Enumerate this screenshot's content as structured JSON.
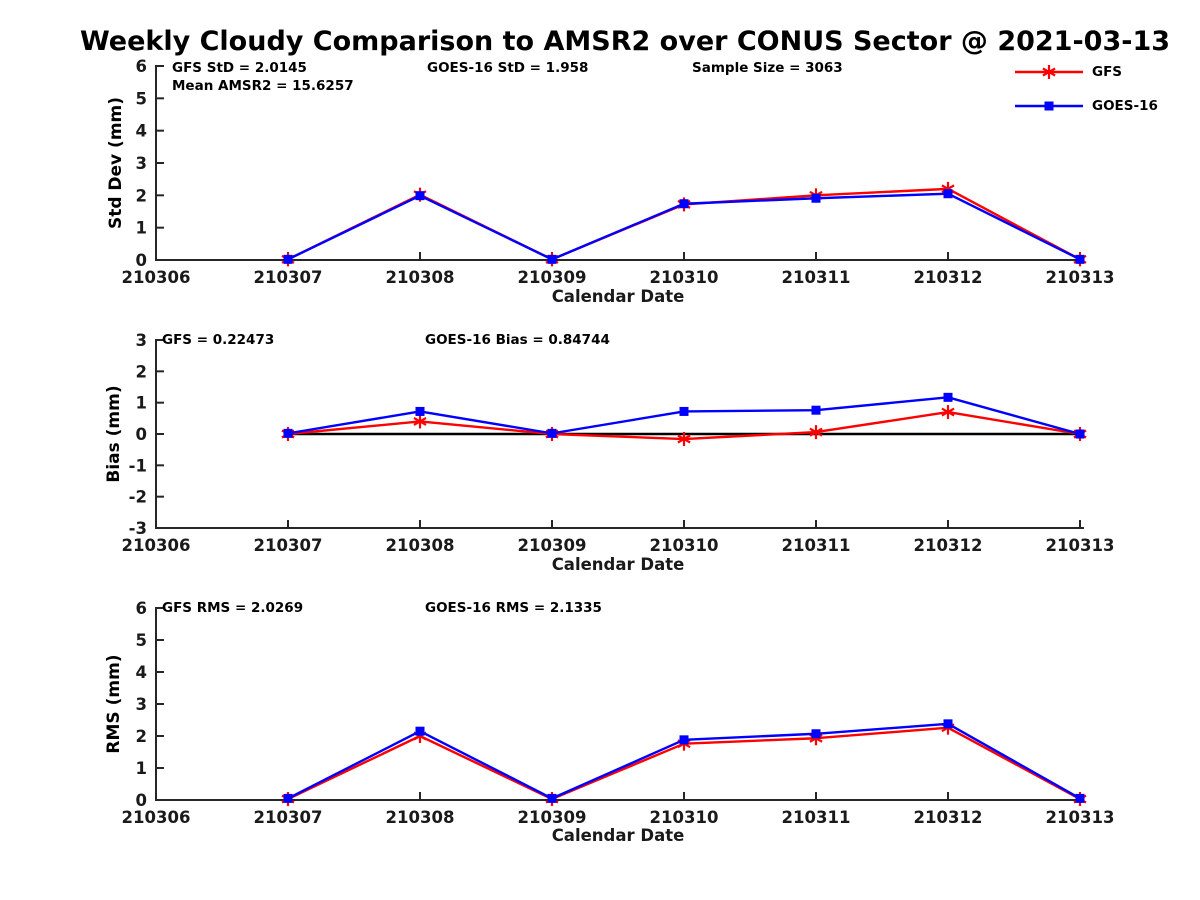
{
  "title": "Weekly Cloudy Comparison to AMSR2 over CONUS Sector @ 2021-03-13",
  "colors": {
    "gfs": "#ff0000",
    "goes16": "#0000ff",
    "axis": "#262626",
    "tick_text": "#1a1a1a",
    "zero_line": "#000000"
  },
  "legend": {
    "position": "top-right",
    "items": [
      {
        "label": "GFS",
        "color": "#ff0000",
        "marker": "asterisk"
      },
      {
        "label": "GOES-16",
        "color": "#0000ff",
        "marker": "square"
      }
    ]
  },
  "chart_data": [
    {
      "type": "line",
      "name": "stddev",
      "ylabel": "Std Dev (mm)",
      "xlabel": "Calendar Date",
      "ylim": [
        0,
        6
      ],
      "yticks": [
        0,
        1,
        2,
        3,
        4,
        5,
        6
      ],
      "grid": false,
      "x_labels": [
        "210306",
        "210307",
        "210308",
        "210309",
        "210310",
        "210311",
        "210312",
        "210313"
      ],
      "x": [
        "210307",
        "210308",
        "210309",
        "210310",
        "210311",
        "210312",
        "210313"
      ],
      "zero_line": false,
      "annotations": [
        {
          "text": "GFS StD = 2.0145"
        },
        {
          "text": "Mean AMSR2 = 15.6257"
        },
        {
          "text": "GOES-16 StD = 1.958"
        },
        {
          "text": "Sample Size = 3063"
        }
      ],
      "series": [
        {
          "name": "GFS",
          "color": "#ff0000",
          "marker": "asterisk",
          "values": [
            0.02,
            2.02,
            0.02,
            1.72,
            2.0,
            2.2,
            0.02
          ]
        },
        {
          "name": "GOES-16",
          "color": "#0000ff",
          "marker": "square",
          "values": [
            0.02,
            1.99,
            0.02,
            1.74,
            1.91,
            2.05,
            0.02
          ]
        }
      ]
    },
    {
      "type": "line",
      "name": "bias",
      "ylabel": "Bias (mm)",
      "xlabel": "Calendar Date",
      "ylim": [
        -3,
        3
      ],
      "yticks": [
        -3,
        -2,
        -1,
        0,
        1,
        2,
        3
      ],
      "grid": false,
      "x_labels": [
        "210306",
        "210307",
        "210308",
        "210309",
        "210310",
        "210311",
        "210312",
        "210313"
      ],
      "x": [
        "210307",
        "210308",
        "210309",
        "210310",
        "210311",
        "210312",
        "210313"
      ],
      "zero_line": true,
      "annotations": [
        {
          "text": "GFS = 0.22473"
        },
        {
          "text": "GOES-16 Bias  = 0.84744"
        }
      ],
      "series": [
        {
          "name": "GFS",
          "color": "#ff0000",
          "marker": "asterisk",
          "values": [
            0.0,
            0.4,
            0.0,
            -0.16,
            0.06,
            0.7,
            0.0
          ]
        },
        {
          "name": "GOES-16",
          "color": "#0000ff",
          "marker": "square",
          "values": [
            0.02,
            0.72,
            0.02,
            0.72,
            0.76,
            1.17,
            0.0
          ]
        }
      ]
    },
    {
      "type": "line",
      "name": "rms",
      "ylabel": "RMS (mm)",
      "xlabel": "Calendar Date",
      "ylim": [
        0,
        6
      ],
      "yticks": [
        0,
        1,
        2,
        3,
        4,
        5,
        6
      ],
      "grid": false,
      "x_labels": [
        "210306",
        "210307",
        "210308",
        "210309",
        "210310",
        "210311",
        "210312",
        "210313"
      ],
      "x": [
        "210307",
        "210308",
        "210309",
        "210310",
        "210311",
        "210312",
        "210313"
      ],
      "zero_line": false,
      "annotations": [
        {
          "text": "GFS RMS = 2.0269"
        },
        {
          "text": "GOES-16 RMS = 2.1335"
        }
      ],
      "series": [
        {
          "name": "GFS",
          "color": "#ff0000",
          "marker": "asterisk",
          "values": [
            0.03,
            2.0,
            0.03,
            1.76,
            1.93,
            2.26,
            0.03
          ]
        },
        {
          "name": "GOES-16",
          "color": "#0000ff",
          "marker": "square",
          "values": [
            0.05,
            2.15,
            0.05,
            1.88,
            2.07,
            2.38,
            0.05
          ]
        }
      ]
    }
  ]
}
